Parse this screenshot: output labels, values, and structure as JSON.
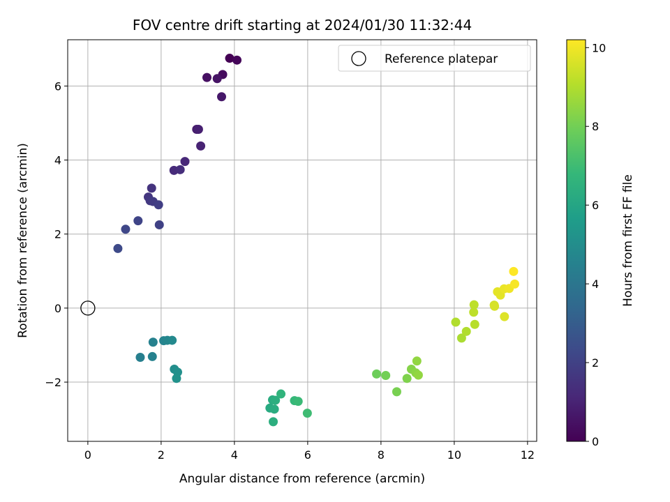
{
  "chart_data": {
    "type": "scatter",
    "title": "FOV centre drift starting at 2024/01/30 11:32:44",
    "xlabel": "Angular distance from reference (arcmin)",
    "ylabel": "Rotation from reference (arcmin)",
    "xlim": [
      -0.55,
      12.25
    ],
    "ylim": [
      -3.6,
      7.25
    ],
    "xticks": [
      0,
      2,
      4,
      6,
      8,
      10,
      12
    ],
    "yticks": [
      -2,
      0,
      2,
      4,
      6
    ],
    "grid": true,
    "legend": {
      "position": "top-right",
      "entries": [
        "Reference platepar"
      ]
    },
    "reference_point": {
      "x": 0,
      "y": 0,
      "label": "Reference platepar"
    },
    "colorbar": {
      "label": "Hours from first FF file",
      "colormap": "viridis",
      "range": [
        0,
        10.2
      ],
      "ticks": [
        0,
        2,
        4,
        6,
        8,
        10
      ]
    },
    "colormap_stops": [
      "#440154",
      "#482878",
      "#3e4989",
      "#31688e",
      "#26828e",
      "#1f9e89",
      "#35b779",
      "#6ece58",
      "#b5de2b",
      "#fde725"
    ],
    "points": [
      {
        "x": 3.87,
        "y": 6.75,
        "hours": 0.0
      },
      {
        "x": 4.07,
        "y": 6.7,
        "hours": 0.15
      },
      {
        "x": 3.68,
        "y": 6.31,
        "hours": 0.3
      },
      {
        "x": 3.25,
        "y": 6.23,
        "hours": 0.45
      },
      {
        "x": 3.53,
        "y": 6.2,
        "hours": 0.55
      },
      {
        "x": 3.65,
        "y": 5.71,
        "hours": 0.65
      },
      {
        "x": 2.97,
        "y": 4.83,
        "hours": 0.8
      },
      {
        "x": 3.02,
        "y": 4.83,
        "hours": 0.9
      },
      {
        "x": 3.08,
        "y": 4.38,
        "hours": 1.0
      },
      {
        "x": 2.65,
        "y": 3.96,
        "hours": 1.15
      },
      {
        "x": 2.35,
        "y": 3.72,
        "hours": 1.25
      },
      {
        "x": 2.52,
        "y": 3.74,
        "hours": 1.35
      },
      {
        "x": 1.74,
        "y": 3.24,
        "hours": 1.5
      },
      {
        "x": 1.65,
        "y": 3.0,
        "hours": 1.6
      },
      {
        "x": 1.7,
        "y": 2.9,
        "hours": 1.7
      },
      {
        "x": 1.78,
        "y": 2.88,
        "hours": 1.8
      },
      {
        "x": 1.93,
        "y": 2.79,
        "hours": 1.9
      },
      {
        "x": 1.95,
        "y": 2.25,
        "hours": 2.0
      },
      {
        "x": 1.37,
        "y": 2.36,
        "hours": 2.1
      },
      {
        "x": 1.03,
        "y": 2.13,
        "hours": 2.2
      },
      {
        "x": 0.82,
        "y": 1.61,
        "hours": 2.3
      },
      {
        "x": 1.78,
        "y": -0.92,
        "hours": 4.5
      },
      {
        "x": 2.07,
        "y": -0.88,
        "hours": 4.6
      },
      {
        "x": 2.17,
        "y": -0.87,
        "hours": 4.7
      },
      {
        "x": 2.3,
        "y": -0.87,
        "hours": 4.8
      },
      {
        "x": 1.43,
        "y": -1.33,
        "hours": 4.4
      },
      {
        "x": 1.76,
        "y": -1.31,
        "hours": 4.5
      },
      {
        "x": 2.36,
        "y": -1.65,
        "hours": 5.0
      },
      {
        "x": 2.45,
        "y": -1.73,
        "hours": 5.1
      },
      {
        "x": 2.42,
        "y": -1.9,
        "hours": 5.2
      },
      {
        "x": 4.97,
        "y": -2.7,
        "hours": 6.2
      },
      {
        "x": 5.04,
        "y": -2.48,
        "hours": 6.3
      },
      {
        "x": 5.12,
        "y": -2.49,
        "hours": 6.4
      },
      {
        "x": 5.09,
        "y": -2.73,
        "hours": 6.3
      },
      {
        "x": 5.06,
        "y": -3.07,
        "hours": 6.4
      },
      {
        "x": 5.27,
        "y": -2.32,
        "hours": 6.6
      },
      {
        "x": 5.64,
        "y": -2.5,
        "hours": 6.8
      },
      {
        "x": 5.74,
        "y": -2.52,
        "hours": 6.9
      },
      {
        "x": 5.99,
        "y": -2.84,
        "hours": 7.0
      },
      {
        "x": 7.88,
        "y": -1.78,
        "hours": 7.9
      },
      {
        "x": 8.13,
        "y": -1.82,
        "hours": 8.0
      },
      {
        "x": 8.43,
        "y": -2.26,
        "hours": 8.1
      },
      {
        "x": 8.71,
        "y": -1.9,
        "hours": 8.2
      },
      {
        "x": 8.83,
        "y": -1.65,
        "hours": 8.3
      },
      {
        "x": 8.95,
        "y": -1.75,
        "hours": 8.4
      },
      {
        "x": 9.02,
        "y": -1.81,
        "hours": 8.5
      },
      {
        "x": 8.98,
        "y": -1.43,
        "hours": 8.5
      },
      {
        "x": 10.04,
        "y": -0.38,
        "hours": 9.0
      },
      {
        "x": 10.2,
        "y": -0.81,
        "hours": 8.9
      },
      {
        "x": 10.33,
        "y": -0.63,
        "hours": 9.0
      },
      {
        "x": 10.56,
        "y": -0.44,
        "hours": 9.1
      },
      {
        "x": 10.53,
        "y": -0.11,
        "hours": 9.2
      },
      {
        "x": 10.54,
        "y": 0.09,
        "hours": 9.2
      },
      {
        "x": 11.09,
        "y": 0.08,
        "hours": 9.5
      },
      {
        "x": 11.1,
        "y": 0.05,
        "hours": 9.6
      },
      {
        "x": 11.37,
        "y": -0.23,
        "hours": 9.7
      },
      {
        "x": 11.18,
        "y": 0.44,
        "hours": 9.8
      },
      {
        "x": 11.26,
        "y": 0.35,
        "hours": 9.8
      },
      {
        "x": 11.36,
        "y": 0.52,
        "hours": 9.9
      },
      {
        "x": 11.5,
        "y": 0.53,
        "hours": 10.0
      },
      {
        "x": 11.65,
        "y": 0.65,
        "hours": 10.1
      },
      {
        "x": 11.62,
        "y": 0.99,
        "hours": 10.2
      }
    ]
  }
}
